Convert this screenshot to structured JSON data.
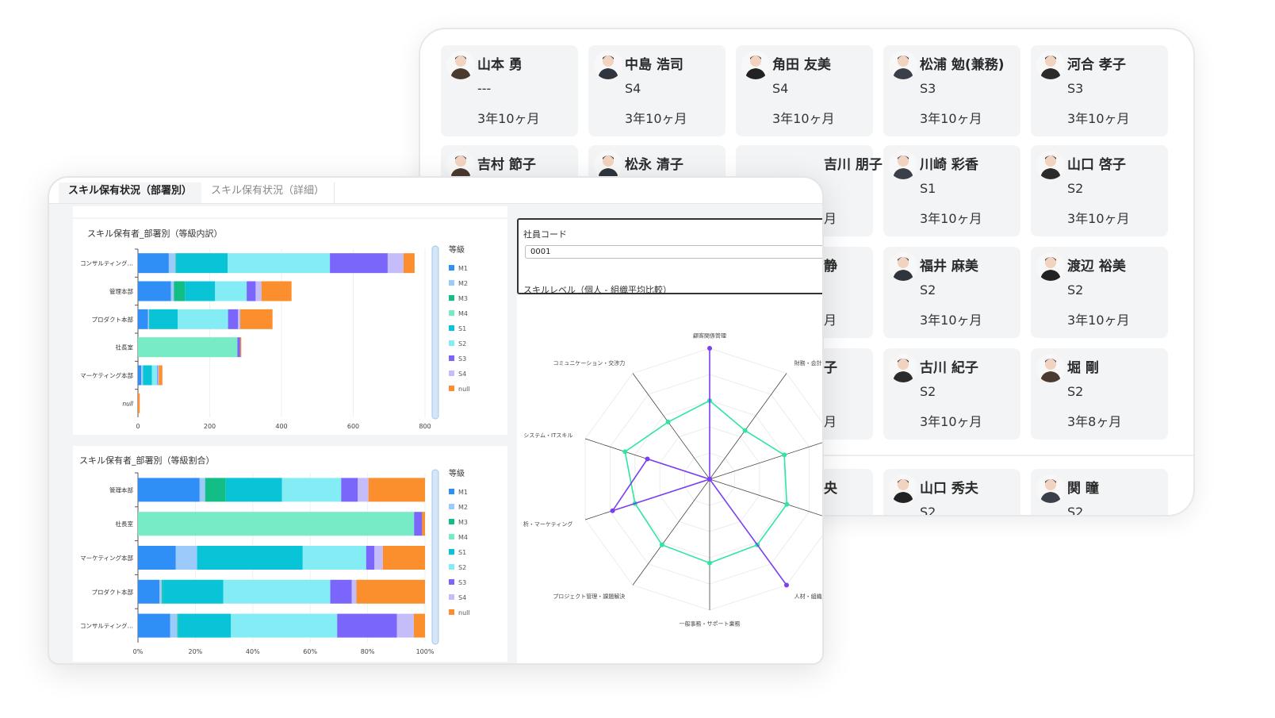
{
  "employee_grid": {
    "cards": [
      {
        "name": "山本 勇",
        "grade": "---",
        "tenure": "3年10ヶ月"
      },
      {
        "name": "中島 浩司",
        "grade": "S4",
        "tenure": "3年10ヶ月"
      },
      {
        "name": "角田 友美",
        "grade": "S4",
        "tenure": "3年10ヶ月"
      },
      {
        "name": "松浦 勉(兼務)",
        "grade": "S3",
        "tenure": "3年10ヶ月"
      },
      {
        "name": "河合 孝子",
        "grade": "S3",
        "tenure": "3年10ヶ月"
      },
      {
        "name": "吉村 節子"
      },
      {
        "name": "松永 清子"
      },
      {
        "name": "吉川 朋子",
        "tenure": "月",
        "peek": true
      },
      {
        "name": "川崎 彩香",
        "grade": "S1",
        "tenure": "3年10ヶ月"
      },
      {
        "name": "山口 啓子",
        "grade": "S2",
        "tenure": "3年10ヶ月"
      },
      {
        "name": "静",
        "tenure": "月",
        "peek": true
      },
      {
        "name": "福井 麻美",
        "grade": "S2",
        "tenure": "3年10ヶ月"
      },
      {
        "name": "渡辺 裕美",
        "grade": "S2",
        "tenure": "3年10ヶ月"
      },
      {
        "name": "子",
        "tenure": "月",
        "peek": true
      },
      {
        "name": "古川 紀子",
        "grade": "S2",
        "tenure": "3年10ヶ月"
      },
      {
        "name": "堀 剛",
        "grade": "S2",
        "tenure": "3年8ヶ月"
      },
      {
        "name": "央",
        "peek": true
      },
      {
        "name": "山口 秀夫",
        "grade": "S2"
      },
      {
        "name": "関 瞳",
        "grade": "S2"
      }
    ]
  },
  "tabs": [
    {
      "label": "スキル保有状況（部署別）",
      "active": true
    },
    {
      "label": "スキル保有状況（詳細）",
      "active": false
    }
  ],
  "employee_code": {
    "label": "社員コード",
    "value": "0001"
  },
  "skill_level_title": "スキルレベル（個人 - 組織平均比較）",
  "grade_colors": {
    "M1": "#2f8ff7",
    "M2": "#9ccbfb",
    "M3": "#13be86",
    "M4": "#76ebc6",
    "S1": "#08c4d6",
    "S2": "#84ecf5",
    "S3": "#7b66fb",
    "S4": "#c5bdf9",
    "null": "#fb8f2d"
  },
  "chart_data": [
    {
      "type": "bar",
      "orientation": "horizontal",
      "stacked": true,
      "title": "スキル保有者_部署別（等級内訳）",
      "legend_title": "等級",
      "legend_position": "right",
      "categories": [
        "コンサルティング…",
        "管理本部",
        "プロダクト本部",
        "社長室",
        "マーケティング本部",
        "null"
      ],
      "xlim": [
        0,
        800
      ],
      "xticks": [
        "0",
        "200",
        "400",
        "600",
        "800"
      ],
      "grid": true,
      "series": [
        {
          "name": "M1",
          "values": [
            86,
            92,
            28,
            0,
            9,
            0
          ]
        },
        {
          "name": "M2",
          "values": [
            19,
            8,
            3,
            0,
            5,
            0
          ]
        },
        {
          "name": "M3",
          "values": [
            2,
            31,
            1,
            0,
            0,
            0
          ]
        },
        {
          "name": "M4",
          "values": [
            0,
            0,
            0,
            277,
            0,
            0
          ]
        },
        {
          "name": "S1",
          "values": [
            143,
            84,
            79,
            0,
            25,
            0
          ]
        },
        {
          "name": "S2",
          "values": [
            285,
            88,
            140,
            0,
            15,
            0
          ]
        },
        {
          "name": "S3",
          "values": [
            161,
            25,
            28,
            8,
            2,
            0
          ]
        },
        {
          "name": "S4",
          "values": [
            44,
            16,
            6,
            0,
            2,
            0
          ]
        },
        {
          "name": "null",
          "values": [
            31,
            84,
            90,
            3,
            10,
            5
          ]
        }
      ]
    },
    {
      "type": "bar",
      "orientation": "horizontal",
      "stacked": true,
      "percent": true,
      "title": "スキル保有者_部署別（等級割合）",
      "legend_title": "等級",
      "legend_position": "right",
      "categories": [
        "管理本部",
        "社長室",
        "マーケティング本部",
        "プロダクト本部",
        "コンサルティング…"
      ],
      "xlim": [
        0,
        100
      ],
      "xticks": [
        "0%",
        "20%",
        "40%",
        "60%",
        "80%",
        "100%"
      ],
      "grid": true,
      "series": [
        {
          "name": "M1",
          "values": [
            21.5,
            0,
            13.2,
            7.5,
            11.2
          ]
        },
        {
          "name": "M2",
          "values": [
            1.9,
            0,
            7.4,
            0.8,
            2.5
          ]
        },
        {
          "name": "M3",
          "values": [
            7.2,
            0,
            0,
            0.3,
            0.3
          ]
        },
        {
          "name": "M4",
          "values": [
            0,
            96.2,
            0,
            0,
            0
          ]
        },
        {
          "name": "S1",
          "values": [
            19.6,
            0,
            36.8,
            21.1,
            18.4
          ]
        },
        {
          "name": "S2",
          "values": [
            20.6,
            0,
            22.1,
            37.3,
            37.0
          ]
        },
        {
          "name": "S3",
          "values": [
            5.8,
            2.8,
            2.9,
            7.5,
            20.8
          ]
        },
        {
          "name": "S4",
          "values": [
            3.7,
            0,
            2.9,
            1.6,
            5.9
          ]
        },
        {
          "name": "null",
          "values": [
            19.7,
            1.0,
            14.7,
            23.9,
            3.9
          ]
        }
      ]
    },
    {
      "type": "radar",
      "axes": [
        "顧客関係管理",
        "財務・会計",
        "",
        "",
        "人材・組織",
        "一般事務・サポート業務",
        "プロジェクト管理・課題解決",
        "析・マーケティング",
        "システム・ITスキル",
        "コミュニケーション・交渉力"
      ],
      "rlim": [
        0,
        5
      ],
      "series": [
        {
          "color": "#2ee6a0",
          "values": [
            3.0,
            2.3,
            3.0,
            3.1,
            3.1,
            3.2,
            3.1,
            3.0,
            3.4,
            2.7
          ]
        },
        {
          "color": "#7b3ff2",
          "values": [
            5,
            0,
            0,
            0,
            5,
            0,
            0,
            3.9,
            2.5,
            0
          ]
        }
      ]
    }
  ]
}
